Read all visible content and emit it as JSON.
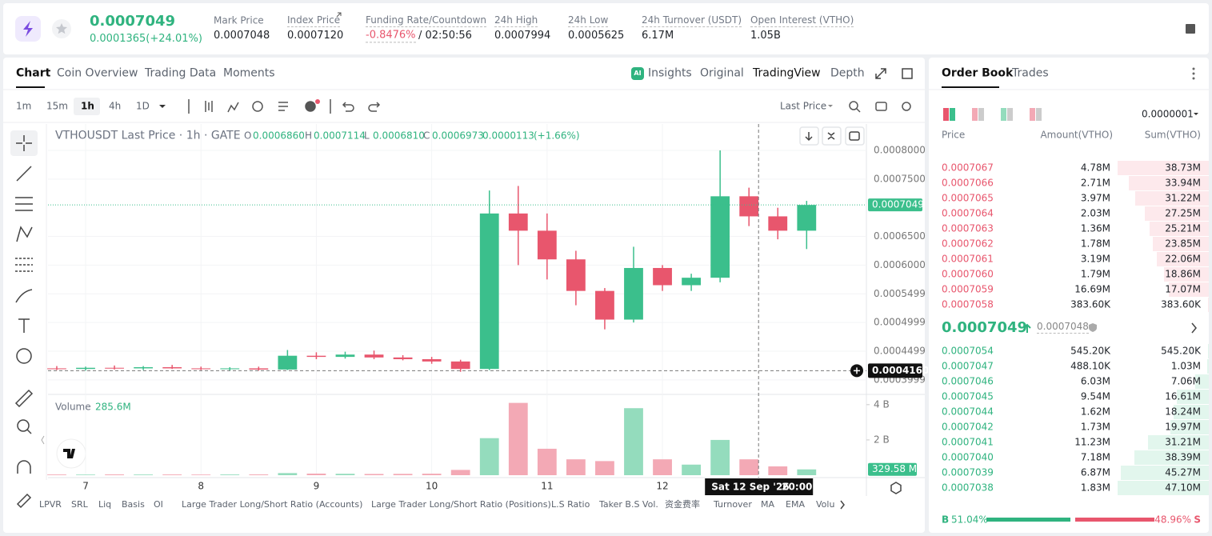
{
  "header": {
    "price": "0.0007049",
    "change": "0.0001365(+24.01%)",
    "stats": [
      {
        "label": "Mark Price",
        "value": "0.0007048"
      },
      {
        "label": "Index Price",
        "value": "0.0007120"
      },
      {
        "label": "Funding Rate/Countdown",
        "value": "-0.8476%",
        "extra": "/ 02:50:56"
      },
      {
        "label": "24h High",
        "value": "0.0007994"
      },
      {
        "label": "24h Low",
        "value": "0.0005625"
      },
      {
        "label": "24h Turnover (USDT)",
        "value": "6.17M"
      },
      {
        "label": "Open Interest (VTHO)",
        "value": "1.05B"
      }
    ]
  },
  "chart_tabs": [
    "Chart",
    "Coin Overview",
    "Trading Data",
    "Moments"
  ],
  "insights_badge": "AI",
  "chart_views": [
    "Insights",
    "Original",
    "TradingView",
    "Depth"
  ],
  "intervals": [
    "1m",
    "15m",
    "1h",
    "4h",
    "1D"
  ],
  "price_source": "Last Price",
  "legend": {
    "symbol": "VTHOUSDT Last Price · 1h · GATE",
    "o_label": "O",
    "o": "0.0006860",
    "h_label": "H",
    "h": "0.0007114",
    "l_label": "L",
    "l": "0.0006810",
    "c_label": "C",
    "c": "0.0006973",
    "change": "0.0000113",
    "change_pct": "(+1.66%)"
  },
  "volume_legend": {
    "label": "Volume",
    "value": "285.6M"
  },
  "indicators": [
    "LPVR",
    "SRL",
    "Liq",
    "Basis",
    "OI",
    "Large Trader Long/Short Ratio (Accounts)",
    "Large Trader Long/Short Ratio (Positions)",
    "L.S Ratio",
    "Taker B.S Vol.",
    "资金费率",
    "Turnover",
    "MA",
    "EMA",
    "Volu"
  ],
  "chart_data": {
    "type": "candlestick",
    "x": [
      6.75,
      7,
      7.25,
      7.5,
      7.75,
      8,
      8.25,
      8.5,
      8.75,
      9,
      9.25,
      9.5,
      9.75,
      10,
      10.25,
      10.5,
      10.75,
      11,
      11.25,
      11.5,
      11.75,
      12,
      12.25,
      12.5,
      12.75,
      13,
      13.25
    ],
    "open": [
      0.00042,
      0.000419,
      0.000421,
      0.00042,
      0.000422,
      0.00042,
      0.000419,
      0.00042,
      0.000418,
      0.000442,
      0.00044,
      0.000444,
      0.000439,
      0.000436,
      0.000432,
      0.000419,
      0.00069,
      0.00066,
      0.00061,
      0.000555,
      0.000505,
      0.000595,
      0.000565,
      0.000578,
      0.00072,
      0.000685,
      0.00066
    ],
    "high": [
      0.000424,
      0.000423,
      0.000425,
      0.000424,
      0.000426,
      0.000423,
      0.000422,
      0.000423,
      0.000452,
      0.000448,
      0.000449,
      0.000451,
      0.000443,
      0.00044,
      0.000435,
      0.00073,
      0.000738,
      0.00069,
      0.000625,
      0.00056,
      0.000632,
      0.0006,
      0.000585,
      0.0008,
      0.000735,
      0.0007,
      0.000712
    ],
    "low": [
      0.000417,
      0.000416,
      0.000418,
      0.000417,
      0.000419,
      0.000417,
      0.000416,
      0.000416,
      0.000417,
      0.000436,
      0.000437,
      0.000436,
      0.000434,
      0.000428,
      0.000414,
      0.000417,
      0.0006,
      0.000575,
      0.00053,
      0.000488,
      0.0005,
      0.000555,
      0.000555,
      0.00057,
      0.000668,
      0.000645,
      0.000628
    ],
    "close": [
      0.000419,
      0.000421,
      0.00042,
      0.000422,
      0.00042,
      0.000419,
      0.00042,
      0.000418,
      0.000442,
      0.00044,
      0.000444,
      0.000439,
      0.000436,
      0.000432,
      0.000419,
      0.00069,
      0.00066,
      0.00061,
      0.000555,
      0.000505,
      0.000595,
      0.000565,
      0.000578,
      0.00072,
      0.000685,
      0.00066,
      0.0007049
    ],
    "volume": [
      40000000,
      35000000,
      45000000,
      38000000,
      42000000,
      36000000,
      40000000,
      44000000,
      120000000,
      90000000,
      80000000,
      70000000,
      75000000,
      85000000,
      300000000,
      2100000000,
      4100000000,
      1500000000,
      900000000,
      800000000,
      3800000000,
      900000000,
      600000000,
      2000000000,
      900000000,
      500000000,
      329580000
    ],
    "up_color": "#3bbf8c",
    "down_color": "#e8566d",
    "up_volume_color": "#94dcbd",
    "down_volume_color": "#f3a9b5",
    "xlim": [
      6.674,
      13.768
    ],
    "xticks": [
      7,
      8,
      9,
      10,
      11,
      12
    ],
    "ylim": [
      0.000376,
      0.000846
    ],
    "yticks": [
      {
        "value": 0.0008,
        "label": "0.0008000"
      },
      {
        "value": 0.00075,
        "label": "0.0007500"
      },
      {
        "value": 0.00065,
        "label": "0.0006500"
      },
      {
        "value": 0.0006,
        "label": "0.0006000"
      },
      0.0005499,
      0.0004999,
      0.0004499,
      0.0003999
    ],
    "volume_ylim": [
      0,
      4400000000
    ],
    "volume_yticks": [
      {
        "value": 2000000000,
        "label": "2 B"
      },
      {
        "value": 4000000000,
        "label": "4 B"
      }
    ],
    "last_price": {
      "value": 0.0007049,
      "label": "0.0007049"
    },
    "volume_last": {
      "value": 329580000,
      "label": "329.58 M"
    },
    "crosshair": {
      "x": 12.8333,
      "date": "Sat 12 Sep '26",
      "time": "20:00",
      "y": 0.000416,
      "y_label": "0.0004160"
    },
    "grid": true
  },
  "order_book": {
    "tabs": [
      "Order Book",
      "Trades"
    ],
    "precision": "0.0000001",
    "headers": [
      "Price",
      "Amount(VTHO)",
      "Sum(VTHO)"
    ],
    "asks": [
      {
        "price": "0.0007067",
        "amount": "4.78M",
        "sum": {
          "value": 38730000,
          "label": "38.73M"
        }
      },
      {
        "price": "0.0007066",
        "amount": "2.71M",
        "sum": {
          "value": 33940000,
          "label": "33.94M"
        }
      },
      {
        "price": "0.0007065",
        "amount": "3.97M",
        "sum": {
          "value": 31220000,
          "label": "31.22M"
        }
      },
      {
        "price": "0.0007064",
        "amount": "2.03M",
        "sum": {
          "value": 27250000,
          "label": "27.25M"
        }
      },
      {
        "price": "0.0007063",
        "amount": "1.36M",
        "sum": {
          "value": 25210000,
          "label": "25.21M"
        }
      },
      {
        "price": "0.0007062",
        "amount": "1.78M",
        "sum": {
          "value": 23850000,
          "label": "23.85M"
        }
      },
      {
        "price": "0.0007061",
        "amount": "3.19M",
        "sum": {
          "value": 22060000,
          "label": "22.06M"
        }
      },
      {
        "price": "0.0007060",
        "amount": "1.79M",
        "sum": {
          "value": 18860000,
          "label": "18.86M"
        }
      },
      {
        "price": "0.0007059",
        "amount": "16.69M",
        "sum": {
          "value": 17070000,
          "label": "17.07M"
        }
      },
      {
        "price": "0.0007058",
        "amount": "383.60K",
        "sum": {
          "value": 383600,
          "label": "383.60K"
        }
      }
    ],
    "last": "0.0007049",
    "mark": "0.0007048",
    "bids": [
      {
        "price": "0.0007054",
        "amount": "545.20K",
        "sum": {
          "value": 545200,
          "label": "545.20K"
        }
      },
      {
        "price": "0.0007047",
        "amount": "488.10K",
        "sum": {
          "value": 1030000,
          "label": "1.03M"
        }
      },
      {
        "price": "0.0007046",
        "amount": "6.03M",
        "sum": {
          "value": 7060000,
          "label": "7.06M"
        }
      },
      {
        "price": "0.0007045",
        "amount": "9.54M",
        "sum": {
          "value": 16610000,
          "label": "16.61M"
        }
      },
      {
        "price": "0.0007044",
        "amount": "1.62M",
        "sum": {
          "value": 18240000,
          "label": "18.24M"
        }
      },
      {
        "price": "0.0007042",
        "amount": "1.73M",
        "sum": {
          "value": 19970000,
          "label": "19.97M"
        }
      },
      {
        "price": "0.0007041",
        "amount": "11.23M",
        "sum": {
          "value": 31210000,
          "label": "31.21M"
        }
      },
      {
        "price": "0.0007040",
        "amount": "7.18M",
        "sum": {
          "value": 38390000,
          "label": "38.39M"
        }
      },
      {
        "price": "0.0007039",
        "amount": "6.87M",
        "sum": {
          "value": 45270000,
          "label": "45.27M"
        }
      },
      {
        "price": "0.0007038",
        "amount": "1.83M",
        "sum": {
          "value": 47100000,
          "label": "47.10M"
        }
      }
    ],
    "buy_label": "B",
    "buy": {
      "value": 51.04,
      "label": "51.04%"
    },
    "sell_label": "S",
    "sell": {
      "value": 48.96,
      "label": "48.96%"
    }
  }
}
